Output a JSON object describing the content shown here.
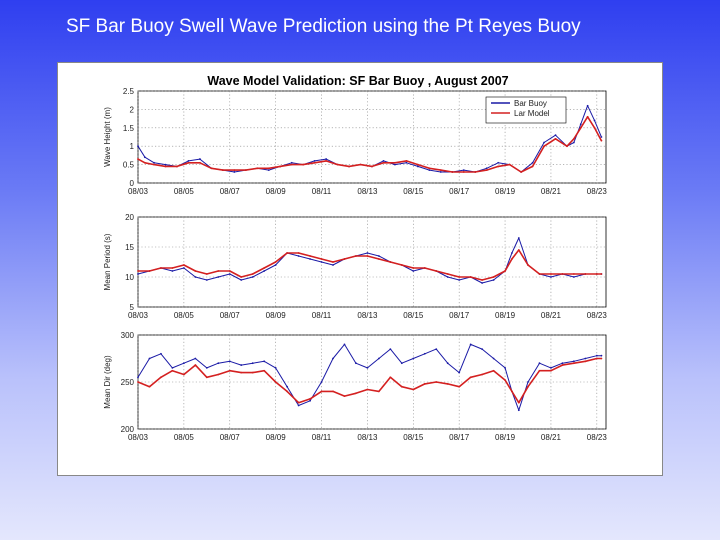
{
  "slide": {
    "title": "SF Bar Buoy Swell Wave Prediction using the Pt Reyes Buoy"
  },
  "colors": {
    "buoy": "#1a1aa6",
    "model": "#d42020",
    "grid": "#8a8a8a"
  },
  "chart_data": {
    "type": "line",
    "title": "Wave Model Validation:  SF Bar Buoy , August 2007",
    "x_ticks": [
      "08/03",
      "08/05",
      "08/07",
      "08/09",
      "08/11",
      "08/13",
      "08/15",
      "08/17",
      "08/19",
      "08/21",
      "08/23"
    ],
    "legend": {
      "placement": "top-right",
      "entries": [
        "Bar Buoy",
        "Lar Model"
      ]
    },
    "grid": true,
    "panels": [
      {
        "id": "height",
        "ylabel": "Wave Height (m)",
        "ylim": [
          0,
          2.5
        ],
        "y_ticks": [
          "2.5",
          "2",
          "1.5",
          "1",
          "0.5",
          "0"
        ],
        "series": [
          {
            "name": "Bar Buoy",
            "x": [
              3.0,
              3.3,
              3.7,
              4.2,
              4.7,
              5.2,
              5.7,
              6.2,
              6.7,
              7.2,
              7.7,
              8.2,
              8.7,
              9.2,
              9.7,
              10.2,
              10.7,
              11.2,
              11.7,
              12.2,
              12.7,
              13.2,
              13.7,
              14.2,
              14.7,
              15.2,
              15.7,
              16.2,
              16.7,
              17.2,
              17.7,
              18.2,
              18.7,
              19.2,
              19.7,
              20.2,
              20.7,
              21.2,
              21.7,
              22.0,
              22.3,
              22.6,
              22.9,
              23.2
            ],
            "values": [
              1.0,
              0.7,
              0.55,
              0.5,
              0.45,
              0.6,
              0.65,
              0.4,
              0.35,
              0.3,
              0.35,
              0.4,
              0.35,
              0.45,
              0.55,
              0.5,
              0.6,
              0.65,
              0.5,
              0.45,
              0.5,
              0.45,
              0.6,
              0.5,
              0.55,
              0.45,
              0.35,
              0.3,
              0.3,
              0.35,
              0.3,
              0.4,
              0.55,
              0.5,
              0.3,
              0.55,
              1.1,
              1.3,
              1.0,
              1.1,
              1.6,
              2.1,
              1.7,
              1.25
            ]
          },
          {
            "name": "Lar Model",
            "x": [
              3.0,
              3.3,
              3.7,
              4.2,
              4.7,
              5.2,
              5.7,
              6.2,
              6.7,
              7.2,
              7.7,
              8.2,
              8.7,
              9.2,
              9.7,
              10.2,
              10.7,
              11.2,
              11.7,
              12.2,
              12.7,
              13.2,
              13.7,
              14.2,
              14.7,
              15.2,
              15.7,
              16.2,
              16.7,
              17.2,
              17.7,
              18.2,
              18.7,
              19.2,
              19.7,
              20.2,
              20.7,
              21.2,
              21.7,
              22.0,
              22.3,
              22.6,
              22.9,
              23.2
            ],
            "values": [
              0.65,
              0.55,
              0.5,
              0.45,
              0.45,
              0.55,
              0.55,
              0.4,
              0.35,
              0.35,
              0.35,
              0.4,
              0.4,
              0.45,
              0.5,
              0.5,
              0.55,
              0.6,
              0.5,
              0.45,
              0.5,
              0.45,
              0.55,
              0.55,
              0.6,
              0.5,
              0.4,
              0.35,
              0.3,
              0.3,
              0.3,
              0.35,
              0.45,
              0.5,
              0.3,
              0.45,
              1.0,
              1.2,
              1.0,
              1.2,
              1.5,
              1.8,
              1.5,
              1.15
            ]
          }
        ]
      },
      {
        "id": "period",
        "ylabel": "Mean Period (s)",
        "ylim": [
          5,
          20
        ],
        "y_ticks": [
          "20",
          "15",
          "10",
          "5"
        ],
        "series": [
          {
            "name": "Bar Buoy",
            "x": [
              3.0,
              3.5,
              4.0,
              4.5,
              5.0,
              5.5,
              6.0,
              6.5,
              7.0,
              7.5,
              8.0,
              8.5,
              9.0,
              9.5,
              10.0,
              10.5,
              11.0,
              11.5,
              12.0,
              12.5,
              13.0,
              13.5,
              14.0,
              14.5,
              15.0,
              15.5,
              16.0,
              16.5,
              17.0,
              17.5,
              18.0,
              18.5,
              19.0,
              19.3,
              19.6,
              20.0,
              20.5,
              21.0,
              21.5,
              22.0,
              22.5,
              23.0,
              23.2
            ],
            "values": [
              10.5,
              11.0,
              11.5,
              11.0,
              11.5,
              10.0,
              9.5,
              10.0,
              10.5,
              9.5,
              10.0,
              11.0,
              12.0,
              14.0,
              13.5,
              13.0,
              12.5,
              12.0,
              13.0,
              13.5,
              14.0,
              13.5,
              12.5,
              12.0,
              11.0,
              11.5,
              11.0,
              10.0,
              9.5,
              10.0,
              9.0,
              9.5,
              11.0,
              14.0,
              16.5,
              12.0,
              10.5,
              10.0,
              10.5,
              10.0,
              10.5,
              10.5,
              10.5
            ]
          },
          {
            "name": "Lar Model",
            "x": [
              3.0,
              3.5,
              4.0,
              4.5,
              5.0,
              5.5,
              6.0,
              6.5,
              7.0,
              7.5,
              8.0,
              8.5,
              9.0,
              9.5,
              10.0,
              10.5,
              11.0,
              11.5,
              12.0,
              12.5,
              13.0,
              13.5,
              14.0,
              14.5,
              15.0,
              15.5,
              16.0,
              16.5,
              17.0,
              17.5,
              18.0,
              18.5,
              19.0,
              19.3,
              19.6,
              20.0,
              20.5,
              21.0,
              21.5,
              22.0,
              22.5,
              23.0,
              23.2
            ],
            "values": [
              11.0,
              11.0,
              11.5,
              11.5,
              12.0,
              11.0,
              10.5,
              11.0,
              11.0,
              10.0,
              10.5,
              11.5,
              12.5,
              14.0,
              14.0,
              13.5,
              13.0,
              12.5,
              13.0,
              13.5,
              13.5,
              13.0,
              12.5,
              12.0,
              11.5,
              11.5,
              11.0,
              10.5,
              10.0,
              10.0,
              9.5,
              10.0,
              11.0,
              13.0,
              14.5,
              12.0,
              10.5,
              10.5,
              10.5,
              10.5,
              10.5,
              10.5,
              10.5
            ]
          }
        ]
      },
      {
        "id": "direction",
        "ylabel": "Mean Dir (deg)",
        "ylim": [
          200,
          300
        ],
        "y_ticks": [
          "300",
          "250",
          "200"
        ],
        "series": [
          {
            "name": "Bar Buoy",
            "x": [
              3.0,
              3.5,
              4.0,
              4.5,
              5.0,
              5.5,
              6.0,
              6.5,
              7.0,
              7.5,
              8.0,
              8.5,
              9.0,
              9.5,
              10.0,
              10.5,
              11.0,
              11.5,
              12.0,
              12.5,
              13.0,
              13.5,
              14.0,
              14.5,
              15.0,
              15.5,
              16.0,
              16.5,
              17.0,
              17.5,
              18.0,
              18.5,
              19.0,
              19.3,
              19.6,
              20.0,
              20.5,
              21.0,
              21.5,
              22.0,
              22.5,
              23.0,
              23.2
            ],
            "values": [
              255,
              275,
              280,
              265,
              270,
              275,
              265,
              270,
              272,
              268,
              270,
              272,
              265,
              245,
              225,
              230,
              250,
              275,
              290,
              270,
              265,
              275,
              285,
              270,
              275,
              280,
              285,
              270,
              260,
              290,
              285,
              275,
              265,
              240,
              220,
              250,
              270,
              265,
              270,
              272,
              275,
              278,
              278
            ]
          },
          {
            "name": "Lar Model",
            "x": [
              3.0,
              3.5,
              4.0,
              4.5,
              5.0,
              5.5,
              6.0,
              6.5,
              7.0,
              7.5,
              8.0,
              8.5,
              9.0,
              9.5,
              10.0,
              10.5,
              11.0,
              11.5,
              12.0,
              12.5,
              13.0,
              13.5,
              14.0,
              14.5,
              15.0,
              15.5,
              16.0,
              16.5,
              17.0,
              17.5,
              18.0,
              18.5,
              19.0,
              19.3,
              19.6,
              20.0,
              20.5,
              21.0,
              21.5,
              22.0,
              22.5,
              23.0,
              23.2
            ],
            "values": [
              250,
              245,
              255,
              262,
              258,
              268,
              255,
              258,
              262,
              260,
              260,
              262,
              250,
              240,
              228,
              232,
              240,
              240,
              235,
              238,
              242,
              240,
              255,
              245,
              242,
              248,
              250,
              248,
              245,
              255,
              258,
              262,
              252,
              240,
              228,
              245,
              262,
              262,
              268,
              270,
              272,
              275,
              275
            ]
          }
        ]
      }
    ]
  }
}
